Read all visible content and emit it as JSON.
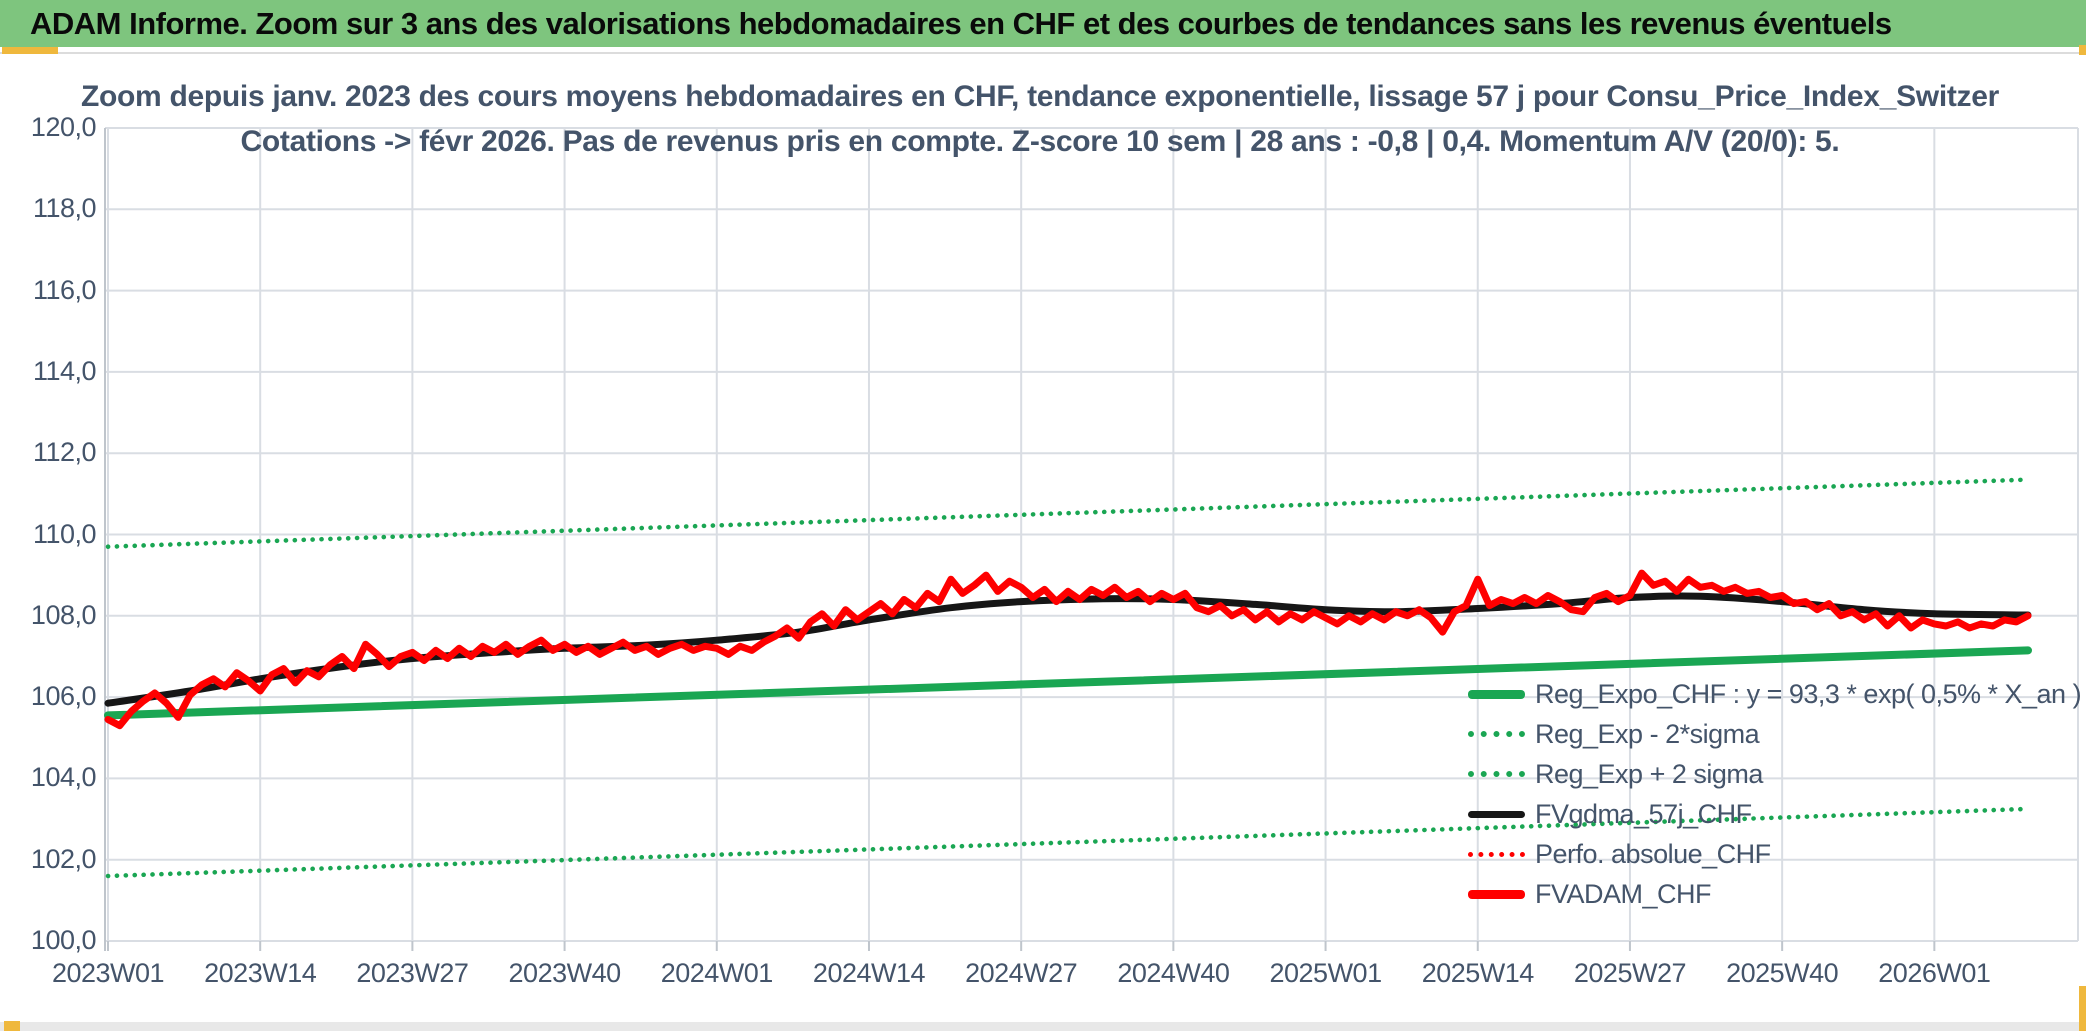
{
  "header": {
    "title": "ADAM Informe. Zoom sur 3 ans des valorisations hebdomadaires en CHF et des courbes de tendances sans les revenus éventuels"
  },
  "chart": {
    "title_line1": "Zoom depuis janv. 2023 des cours moyens hebdomadaires en CHF, tendance exponentielle, lissage 57 j pour Consu_Price_Index_Switzer",
    "title_line2": "Cotations -> févr 2026. Pas de revenus pris en compte. Z-score 10 sem | 28 ans : -0,8 | 0,4. Momentum A/V (20/0): 5."
  },
  "chart_data": {
    "type": "line",
    "title": "Zoom depuis janv. 2023 des cours moyens hebdomadaires en CHF, tendance exponentielle, lissage 57 j pour Consu_Price_Index_Switzer — Cotations -> févr 2026. Pas de revenus pris en compte. Z-score 10 sem | 28 ans : -0,8 | 0,4. Momentum A/V (20/0): 5.",
    "xlabel": "",
    "ylabel": "",
    "grid": true,
    "legend_position": "inside-bottom-right",
    "ylim": [
      100,
      120
    ],
    "y_tick_step": 2,
    "y_tick_labels": [
      "100,0",
      "102,0",
      "104,0",
      "106,0",
      "108,0",
      "110,0",
      "112,0",
      "114,0",
      "116,0",
      "118,0",
      "120,0"
    ],
    "x_tick_labels": [
      "2023W01",
      "2023W14",
      "2023W27",
      "2023W40",
      "2024W01",
      "2024W14",
      "2024W27",
      "2024W40",
      "2025W01",
      "2025W14",
      "2025W27",
      "2025W40",
      "2026W01"
    ],
    "x_tick_week_interval": 13,
    "weeks_total": 165,
    "colors": {
      "green": "#1AA653",
      "red": "#FE0000",
      "black": "#161616",
      "grid": "#D9DDE3",
      "axis": "#BFC5CC",
      "text": "#44546A",
      "banner": "#7EC57E",
      "accent_yellow": "#EFB83D"
    },
    "series": [
      {
        "name": "Reg_Expo_CHF : y = 93,3 * exp( 0,5% *  X_an )",
        "color": "#1AA653",
        "style": "solid",
        "width": 8,
        "endpoints": [
          105.55,
          107.15
        ]
      },
      {
        "name": "Reg_Exp - 2*sigma",
        "color": "#1AA653",
        "style": "dotted",
        "width": 4.6,
        "endpoints": [
          101.6,
          103.25
        ]
      },
      {
        "name": "Reg_Exp + 2 sigma",
        "color": "#1AA653",
        "style": "dotted",
        "width": 4.6,
        "endpoints": [
          109.7,
          111.35
        ]
      },
      {
        "name": "FVgdma_57j_CHF",
        "color": "#161616",
        "style": "solid",
        "width": 7,
        "smooth": true,
        "anchors": [
          [
            0,
            105.85
          ],
          [
            7,
            106.15
          ],
          [
            13,
            106.45
          ],
          [
            20,
            106.75
          ],
          [
            26,
            106.95
          ],
          [
            33,
            107.1
          ],
          [
            39,
            107.2
          ],
          [
            46,
            107.28
          ],
          [
            52,
            107.4
          ],
          [
            59,
            107.6
          ],
          [
            65,
            107.9
          ],
          [
            72,
            108.2
          ],
          [
            78,
            108.35
          ],
          [
            85,
            108.42
          ],
          [
            91,
            108.4
          ],
          [
            98,
            108.28
          ],
          [
            104,
            108.15
          ],
          [
            110,
            108.1
          ],
          [
            117,
            108.18
          ],
          [
            124,
            108.3
          ],
          [
            130,
            108.45
          ],
          [
            136,
            108.48
          ],
          [
            143,
            108.35
          ],
          [
            150,
            108.15
          ],
          [
            156,
            108.05
          ],
          [
            164,
            108.02
          ]
        ]
      },
      {
        "name": "Perfo. absolue_CHF",
        "color": "#FE0000",
        "style": "dotted",
        "width": 4,
        "note": "coincident with FVADAM_CHF, not separately visible"
      },
      {
        "name": "FVADAM_CHF",
        "color": "#FE0000",
        "style": "solid",
        "width": 7,
        "values": [
          105.45,
          105.3,
          105.65,
          105.9,
          106.1,
          105.85,
          105.5,
          106.05,
          106.3,
          106.45,
          106.25,
          106.6,
          106.4,
          106.15,
          106.55,
          106.7,
          106.35,
          106.65,
          106.5,
          106.8,
          107.0,
          106.7,
          107.3,
          107.05,
          106.75,
          107.0,
          107.1,
          106.9,
          107.15,
          106.95,
          107.2,
          107.0,
          107.25,
          107.1,
          107.3,
          107.05,
          107.25,
          107.4,
          107.15,
          107.3,
          107.1,
          107.25,
          107.05,
          107.2,
          107.35,
          107.15,
          107.25,
          107.05,
          107.2,
          107.3,
          107.15,
          107.25,
          107.2,
          107.05,
          107.25,
          107.15,
          107.35,
          107.5,
          107.7,
          107.45,
          107.85,
          108.05,
          107.75,
          108.15,
          107.9,
          108.1,
          108.3,
          108.05,
          108.4,
          108.2,
          108.55,
          108.35,
          108.9,
          108.55,
          108.75,
          109.0,
          108.6,
          108.85,
          108.7,
          108.45,
          108.65,
          108.35,
          108.6,
          108.4,
          108.65,
          108.5,
          108.7,
          108.45,
          108.6,
          108.35,
          108.55,
          108.4,
          108.55,
          108.2,
          108.1,
          108.25,
          108.0,
          108.15,
          107.9,
          108.1,
          107.85,
          108.05,
          107.9,
          108.1,
          107.95,
          107.8,
          108.0,
          107.85,
          108.05,
          107.9,
          108.1,
          108.0,
          108.15,
          107.95,
          107.6,
          108.1,
          108.25,
          108.9,
          108.25,
          108.4,
          108.3,
          108.45,
          108.3,
          108.5,
          108.35,
          108.15,
          108.1,
          108.45,
          108.55,
          108.35,
          108.5,
          109.05,
          108.75,
          108.85,
          108.6,
          108.9,
          108.7,
          108.75,
          108.6,
          108.7,
          108.55,
          108.6,
          108.45,
          108.5,
          108.3,
          108.35,
          108.15,
          108.3,
          108.0,
          108.1,
          107.9,
          108.05,
          107.75,
          108.0,
          107.7,
          107.9,
          107.8,
          107.75,
          107.85,
          107.7,
          107.8,
          107.75,
          107.9,
          107.85,
          108.0
        ]
      }
    ],
    "legend": [
      {
        "label": "Reg_Expo_CHF : y = 93,3 * exp( 0,5% *  X_an )",
        "color": "#1AA653",
        "style": "solid",
        "thickness": 9
      },
      {
        "label": "Reg_Exp - 2*sigma",
        "color": "#1AA653",
        "style": "dotted",
        "thickness": 6
      },
      {
        "label": "Reg_Exp + 2 sigma",
        "color": "#1AA653",
        "style": "dotted",
        "thickness": 6
      },
      {
        "label": "FVgdma_57j_CHF",
        "color": "#161616",
        "style": "solid",
        "thickness": 7
      },
      {
        "label": "Perfo. absolue_CHF",
        "color": "#FE0000",
        "style": "dotted",
        "thickness": 5
      },
      {
        "label": "FVADAM_CHF",
        "color": "#FE0000",
        "style": "solid",
        "thickness": 9
      }
    ]
  }
}
